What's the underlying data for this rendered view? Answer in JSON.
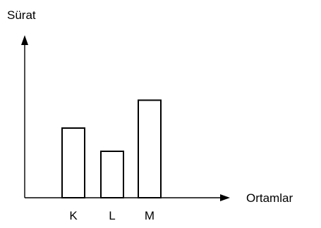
{
  "chart_data": {
    "type": "bar",
    "title": "",
    "xlabel": "Ortamlar",
    "ylabel": "Sürat",
    "categories": [
      "K",
      "L",
      "M"
    ],
    "values": [
      3,
      2,
      4.2
    ],
    "ylim": [
      0,
      7
    ],
    "grid": false,
    "legend": "none",
    "colors": {
      "bar_fill": "#ffffff",
      "bar_stroke": "#000000",
      "axis": "#000000"
    }
  }
}
